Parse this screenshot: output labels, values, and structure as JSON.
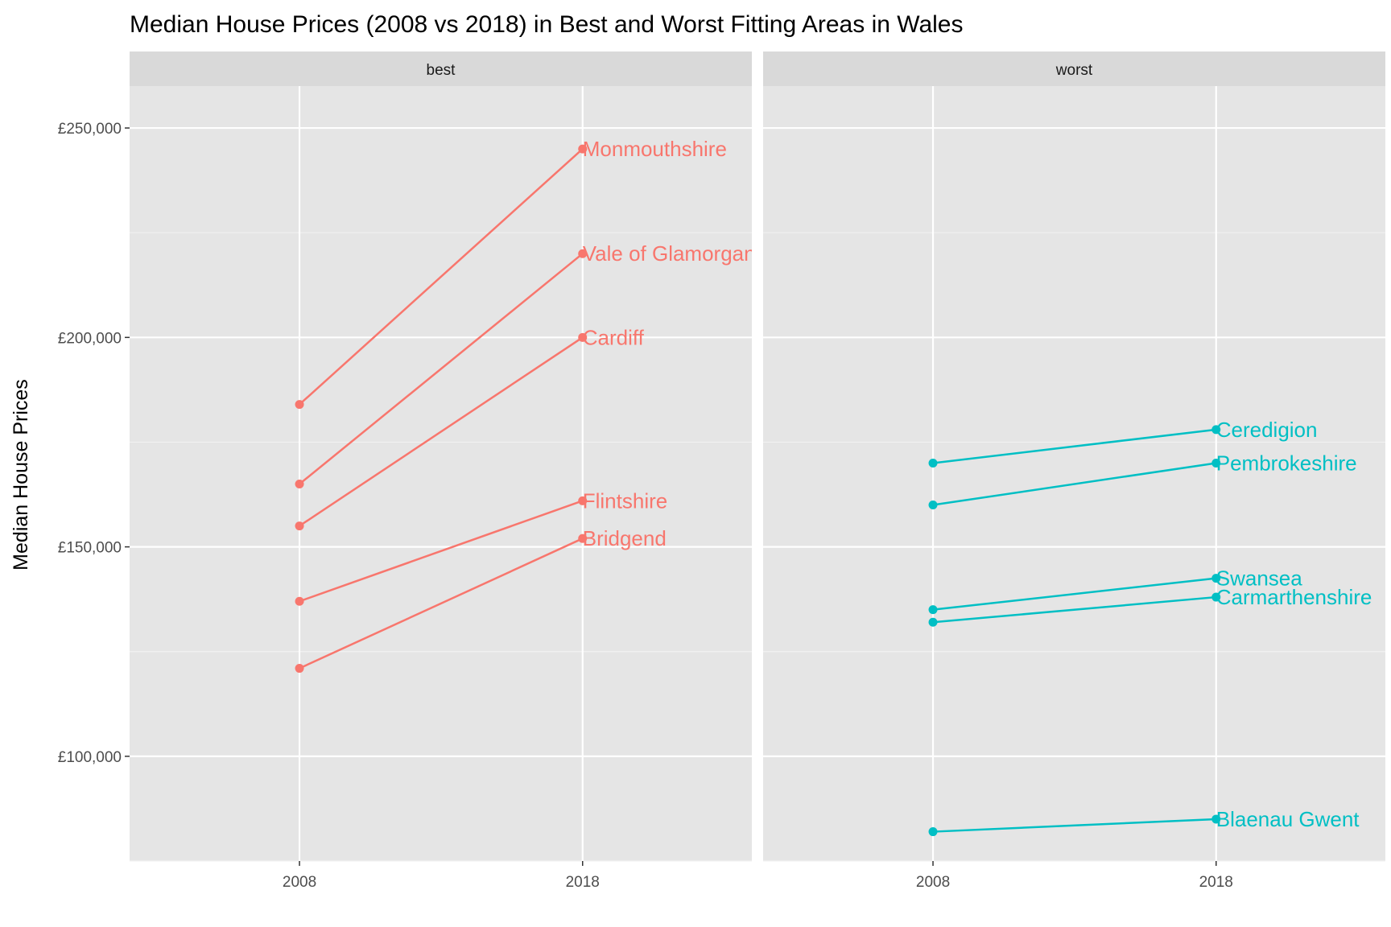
{
  "chart_data": {
    "type": "line",
    "title": "Median House Prices (2008 vs 2018) in Best and Worst Fitting Areas in Wales",
    "xlabel": "",
    "ylabel": "Median House Prices",
    "x": [
      "2008",
      "2018"
    ],
    "ylim": [
      75000,
      260000
    ],
    "yticks": [
      100000,
      150000,
      200000,
      250000
    ],
    "ytick_labels": [
      "£100,000",
      "£150,000",
      "£200,000",
      "£250,000"
    ],
    "grid": true,
    "legend": "none",
    "colors": {
      "best": "#f8766d",
      "worst": "#00bfc4",
      "panel_bg": "#e5e5e5",
      "strip_bg": "#d9d9d9",
      "grid": "#ffffff"
    },
    "facets": [
      {
        "label": "best",
        "series": [
          {
            "name": "Monmouthshire",
            "values": [
              184000,
              245000
            ]
          },
          {
            "name": "Vale of Glamorgan",
            "values": [
              165000,
              220000
            ]
          },
          {
            "name": "Cardiff",
            "values": [
              155000,
              200000
            ]
          },
          {
            "name": "Flintshire",
            "values": [
              137000,
              161000
            ]
          },
          {
            "name": "Bridgend",
            "values": [
              121000,
              152000
            ]
          }
        ]
      },
      {
        "label": "worst",
        "series": [
          {
            "name": "Ceredigion",
            "values": [
              170000,
              178000
            ]
          },
          {
            "name": "Pembrokeshire",
            "values": [
              160000,
              170000
            ]
          },
          {
            "name": "Swansea",
            "values": [
              135000,
              142500
            ]
          },
          {
            "name": "Carmarthenshire",
            "values": [
              132000,
              138000
            ]
          },
          {
            "name": "Blaenau Gwent",
            "values": [
              82000,
              85000
            ]
          }
        ]
      }
    ]
  }
}
